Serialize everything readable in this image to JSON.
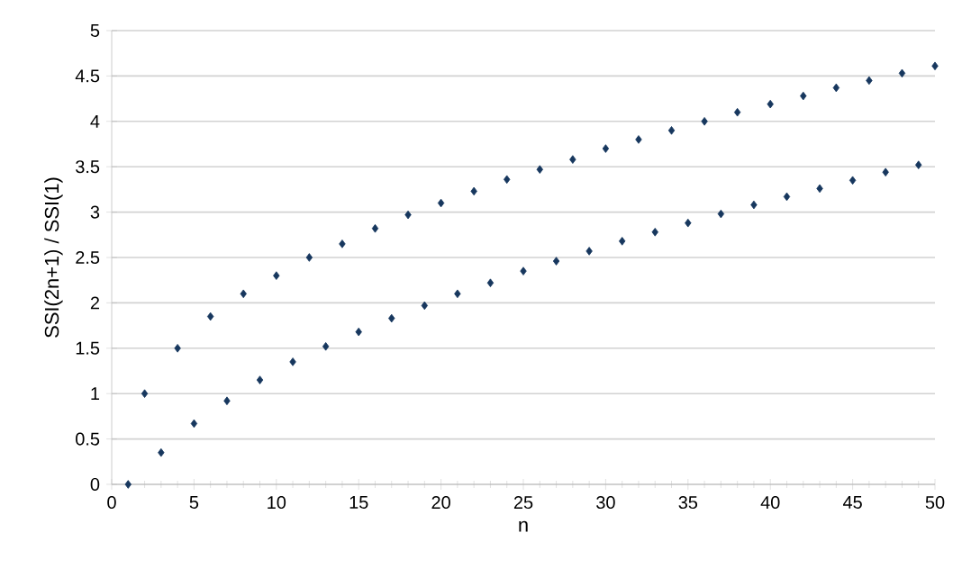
{
  "chart_data": {
    "type": "scatter",
    "xlabel": "n",
    "ylabel": "SSI(2n+1) / SSI(1)",
    "x": [
      1,
      2,
      3,
      4,
      5,
      6,
      7,
      8,
      9,
      10,
      11,
      12,
      13,
      14,
      15,
      16,
      17,
      18,
      19,
      20,
      21,
      22,
      23,
      24,
      25,
      26,
      27,
      28,
      29,
      30,
      31,
      32,
      33,
      34,
      35,
      36,
      37,
      38,
      39,
      40,
      41,
      42,
      43,
      44,
      45,
      46,
      47,
      48,
      49,
      50
    ],
    "series": [
      {
        "color": "#17375e",
        "values": [
          0,
          1,
          0.35,
          1.5,
          0.67,
          1.85,
          0.92,
          2.1,
          1.15,
          2.3,
          1.35,
          2.5,
          1.52,
          2.65,
          1.68,
          2.82,
          1.83,
          2.97,
          1.97,
          3.1,
          2.1,
          3.23,
          2.22,
          3.36,
          2.35,
          3.47,
          2.46,
          3.58,
          2.57,
          3.7,
          2.68,
          3.8,
          2.78,
          3.9,
          2.88,
          4.0,
          2.98,
          4.1,
          3.08,
          4.19,
          3.17,
          4.28,
          3.26,
          4.37,
          3.35,
          4.45,
          3.44,
          4.53,
          3.52,
          4.61
        ]
      }
    ],
    "xlim": [
      0,
      50
    ],
    "xticks": [
      0,
      5,
      10,
      15,
      20,
      25,
      30,
      35,
      40,
      45,
      50
    ],
    "ylim": [
      0,
      5
    ],
    "yticks": [
      0,
      0.5,
      1,
      1.5,
      2,
      2.5,
      3,
      3.5,
      4,
      4.5,
      5
    ],
    "grid": "y",
    "marker": "diamond"
  }
}
